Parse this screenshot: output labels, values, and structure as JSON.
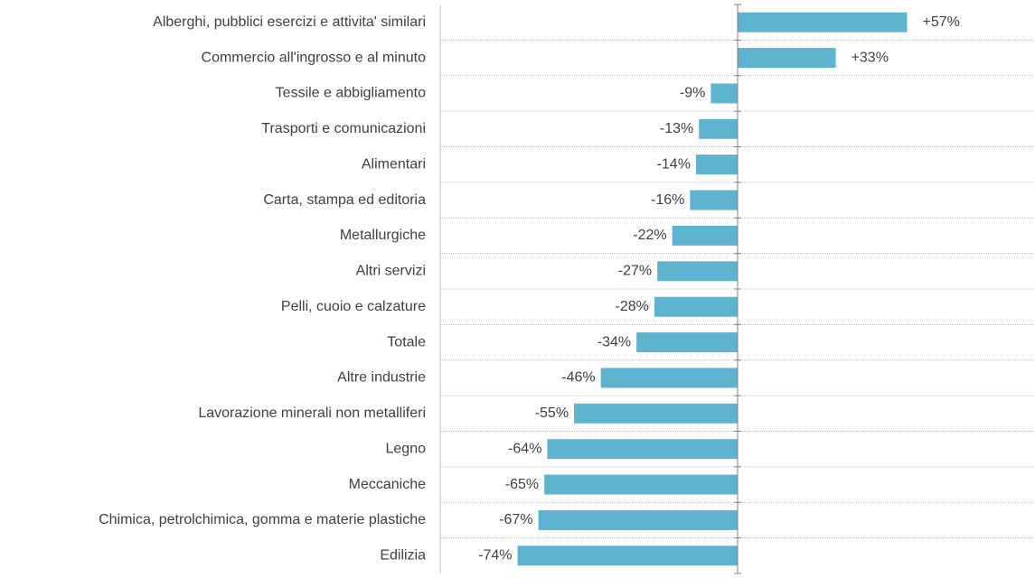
{
  "chart_data": {
    "type": "bar",
    "orientation": "horizontal",
    "categories": [
      "Alberghi, pubblici esercizi e attivita' similari",
      "Commercio all'ingrosso e al minuto",
      "Tessile e abbigliamento",
      "Trasporti e comunicazioni",
      "Alimentari",
      "Carta, stampa ed editoria",
      "Metallurgiche",
      "Altri servizi",
      "Pelli, cuoio e calzature",
      "Totale",
      "Altre industrie",
      "Lavorazione minerali non metalliferi",
      "Legno",
      "Meccaniche",
      "Chimica, petrolchimica, gomma e materie plastiche",
      "Edilizia"
    ],
    "values": [
      57,
      33,
      -9,
      -13,
      -14,
      -16,
      -22,
      -27,
      -28,
      -34,
      -46,
      -55,
      -64,
      -65,
      -67,
      -74
    ],
    "value_labels": [
      "+57%",
      "+33%",
      "-9%",
      "-13%",
      "-14%",
      "-16%",
      "-22%",
      "-27%",
      "-28%",
      "-34%",
      "-46%",
      "-55%",
      "-64%",
      "-65%",
      "-67%",
      "-74%"
    ],
    "color": "#5eb3cf",
    "xlim": [
      -100,
      100
    ]
  }
}
